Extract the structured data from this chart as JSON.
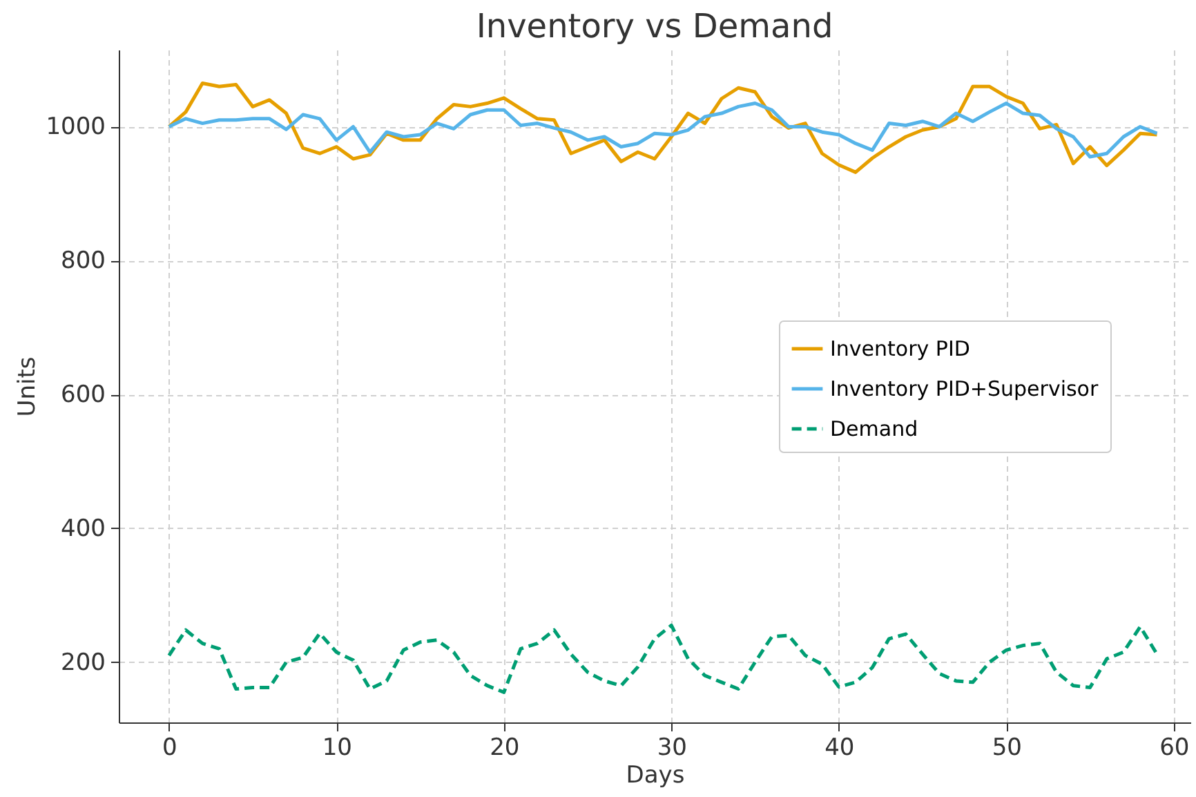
{
  "chart_data": {
    "type": "line",
    "title": "Inventory vs Demand",
    "xlabel": "Days",
    "ylabel": "Units",
    "x": [
      0,
      1,
      2,
      3,
      4,
      5,
      6,
      7,
      8,
      9,
      10,
      11,
      12,
      13,
      14,
      15,
      16,
      17,
      18,
      19,
      20,
      21,
      22,
      23,
      24,
      25,
      26,
      27,
      28,
      29,
      30,
      31,
      32,
      33,
      34,
      35,
      36,
      37,
      38,
      39,
      40,
      41,
      42,
      43,
      44,
      45,
      46,
      47,
      48,
      49,
      50,
      51,
      52,
      53,
      54,
      55,
      56,
      57,
      58,
      59
    ],
    "series": [
      {
        "name": "Inventory PID",
        "color": "#e69f00",
        "line_style": "solid",
        "values": [
          1000,
          1022,
          1065,
          1060,
          1063,
          1030,
          1040,
          1020,
          968,
          960,
          970,
          952,
          958,
          990,
          980,
          980,
          1012,
          1033,
          1030,
          1035,
          1043,
          1027,
          1012,
          1010,
          960,
          970,
          980,
          948,
          962,
          952,
          985,
          1020,
          1005,
          1042,
          1058,
          1052,
          1015,
          998,
          1005,
          960,
          943,
          932,
          953,
          970,
          985,
          995,
          1000,
          1012,
          1060,
          1060,
          1045,
          1035,
          997,
          1003,
          945,
          970,
          942,
          965,
          990,
          988
        ]
      },
      {
        "name": "Inventory PID+Supervisor",
        "color": "#56b4e9",
        "line_style": "solid",
        "values": [
          1000,
          1012,
          1005,
          1010,
          1010,
          1012,
          1012,
          996,
          1018,
          1012,
          980,
          1000,
          962,
          992,
          985,
          988,
          1005,
          997,
          1018,
          1025,
          1025,
          1002,
          1005,
          998,
          992,
          980,
          985,
          970,
          975,
          990,
          988,
          995,
          1015,
          1020,
          1030,
          1035,
          1025,
          1000,
          1000,
          992,
          988,
          975,
          965,
          1005,
          1002,
          1008,
          1000,
          1020,
          1008,
          1022,
          1035,
          1020,
          1017,
          997,
          985,
          955,
          960,
          985,
          1000,
          990
        ]
      },
      {
        "name": "Demand",
        "color": "#009e73",
        "line_style": "dashed",
        "values": [
          210,
          248,
          228,
          220,
          160,
          162,
          162,
          200,
          207,
          243,
          215,
          203,
          160,
          172,
          218,
          230,
          233,
          215,
          180,
          165,
          155,
          220,
          228,
          248,
          212,
          185,
          172,
          165,
          193,
          235,
          255,
          205,
          180,
          170,
          160,
          200,
          238,
          240,
          210,
          197,
          163,
          170,
          192,
          235,
          242,
          212,
          183,
          172,
          170,
          200,
          218,
          225,
          228,
          185,
          165,
          162,
          205,
          215,
          253,
          212
        ]
      }
    ],
    "xlim": [
      -3,
      61
    ],
    "xticks": [
      0,
      10,
      20,
      30,
      40,
      50,
      60
    ],
    "ylim": [
      110,
      1115
    ],
    "yticks": [
      200,
      400,
      600,
      800,
      1000
    ],
    "grid": true,
    "legend": "right"
  }
}
